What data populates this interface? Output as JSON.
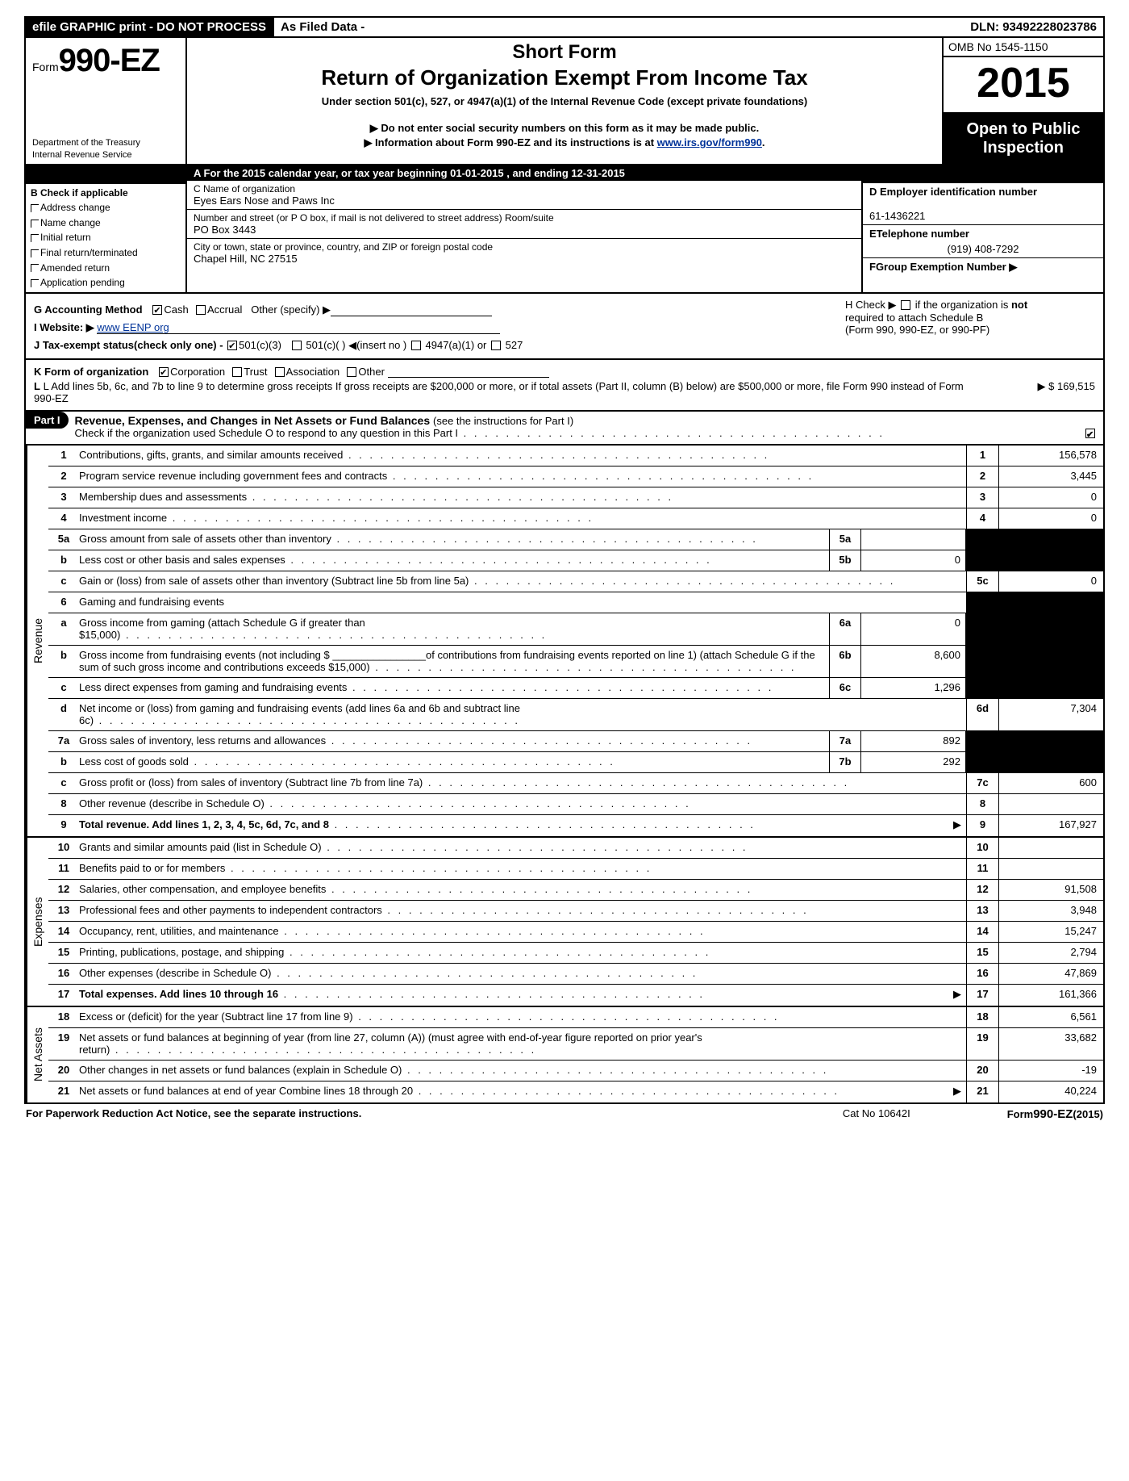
{
  "topbar": {
    "efile": "efile GRAPHIC print - DO NOT PROCESS",
    "asfiled": "As Filed Data -",
    "dln_label": "DLN:",
    "dln": "93492228023786"
  },
  "header": {
    "form_prefix": "Form",
    "form_no": "990-EZ",
    "dept1": "Department of the Treasury",
    "dept2": "Internal Revenue Service",
    "short_form": "Short Form",
    "title": "Return of Organization Exempt From Income Tax",
    "under": "Under section 501(c), 527, or 4947(a)(1) of the Internal Revenue Code (except private foundations)",
    "donot": "▶ Do not enter social security numbers on this form as it may be made public.",
    "info_pre": "▶ Information about Form 990-EZ and its instructions is at ",
    "info_link": "www.irs.gov/form990",
    "info_post": ".",
    "omb": "OMB No  1545-1150",
    "year": "2015",
    "open1": "Open to Public",
    "open2": "Inspection"
  },
  "section_a": {
    "row_a": "A  For the 2015 calendar year, or tax year beginning 01-01-2015             , and ending 12-31-2015",
    "b_title": "B  Check if applicable",
    "b_items": [
      "Address change",
      "Name change",
      "Initial return",
      "Final return/terminated",
      "Amended return",
      "Application pending"
    ],
    "c_name_lbl": "C Name of organization",
    "c_name": "Eyes Ears Nose and Paws Inc",
    "c_street_lbl": "Number and street (or P  O  box, if mail is not delivered to street address) Room/suite",
    "c_street": "PO Box 3443",
    "c_city_lbl": "City or town, state or province, country, and ZIP or foreign postal code",
    "c_city": "Chapel Hill, NC  27515",
    "d_lbl": "D Employer identification number",
    "d_val": "61-1436221",
    "e_lbl": "ETelephone number",
    "e_val": "(919) 408-7292",
    "f_lbl": "FGroup Exemption Number    ▶"
  },
  "meta": {
    "g": "G Accounting Method",
    "g_cash": "Cash",
    "g_accrual": "Accrual",
    "g_other": "Other (specify) ▶",
    "h1": "H  Check ▶",
    "h2": "if the organization is",
    "h_not": "not",
    "h3": "required to attach Schedule B",
    "h4": "(Form 990, 990-EZ, or 990-PF)",
    "i_lbl": "I Website: ▶",
    "i_url": "www EENP org",
    "j": "J Tax-exempt status(check only one) -",
    "j_1": "501(c)(3)",
    "j_2": "501(c)(  )",
    "j_insert": "(insert no )",
    "j_3": "4947(a)(1) or",
    "j_4": "527",
    "k": "K Form of organization",
    "k_corp": "Corporation",
    "k_trust": "Trust",
    "k_assoc": "Association",
    "k_other": "Other",
    "l": "L Add lines 5b, 6c, and 7b to line 9 to determine gross receipts  If gross receipts are $200,000 or more, or if total assets (Part II, column (B) below) are $500,000 or more, file Form 990 instead of Form 990-EZ",
    "l_val": "▶ $ 169,515"
  },
  "part1": {
    "label": "Part I",
    "title": "Revenue, Expenses, and Changes in Net Assets or Fund Balances",
    "title_sub": "(see the instructions for Part I)",
    "check_line": "Check if the organization used Schedule O to respond to any question in this Part I"
  },
  "sections": {
    "revenue_label": "Revenue",
    "expenses_label": "Expenses",
    "netassets_label": "Net Assets"
  },
  "revenue": [
    {
      "n": "1",
      "d": "Contributions, gifts, grants, and similar amounts received",
      "rn": "1",
      "rv": "156,578"
    },
    {
      "n": "2",
      "d": "Program service revenue including government fees and contracts",
      "rn": "2",
      "rv": "3,445"
    },
    {
      "n": "3",
      "d": "Membership dues and assessments",
      "rn": "3",
      "rv": "0"
    },
    {
      "n": "4",
      "d": "Investment income",
      "rn": "4",
      "rv": "0"
    },
    {
      "n": "5a",
      "d": "Gross amount from sale of assets other than inventory",
      "sn": "5a",
      "sv": ""
    },
    {
      "n": "b",
      "d": "Less  cost or other basis and sales expenses",
      "sn": "5b",
      "sv": "0"
    },
    {
      "n": "c",
      "d": "Gain or (loss) from sale of assets other than inventory (Subtract line 5b from line 5a)",
      "rn": "5c",
      "rv": "0"
    },
    {
      "n": "6",
      "d": "Gaming and fundraising events"
    },
    {
      "n": "a",
      "d": "Gross income from gaming (attach Schedule G if greater than $15,000)",
      "sn": "6a",
      "sv": "0"
    },
    {
      "n": "b",
      "d": "Gross income from fundraising events (not including $ ________________of contributions from fundraising events reported on line 1) (attach Schedule G if the sum of such gross income and contributions exceeds $15,000)",
      "sn": "6b",
      "sv": "8,600"
    },
    {
      "n": "c",
      "d": "Less  direct expenses from gaming and fundraising events",
      "sn": "6c",
      "sv": "1,296"
    },
    {
      "n": "d",
      "d": "Net income or (loss) from gaming and fundraising events (add lines 6a and 6b and subtract line 6c)",
      "rn": "6d",
      "rv": "7,304"
    },
    {
      "n": "7a",
      "d": "Gross sales of inventory, less returns and allowances",
      "sn": "7a",
      "sv": "892"
    },
    {
      "n": "b",
      "d": "Less  cost of goods sold",
      "sn": "7b",
      "sv": "292"
    },
    {
      "n": "c",
      "d": "Gross profit or (loss) from sales of inventory (Subtract line 7b from line 7a)",
      "rn": "7c",
      "rv": "600"
    },
    {
      "n": "8",
      "d": "Other revenue (describe in Schedule O)",
      "rn": "8",
      "rv": ""
    },
    {
      "n": "9",
      "d": "Total revenue. Add lines 1, 2, 3, 4, 5c, 6d, 7c, and 8",
      "rn": "9",
      "rv": "167,927",
      "bold": true,
      "arrow": true
    }
  ],
  "expenses": [
    {
      "n": "10",
      "d": "Grants and similar amounts paid (list in Schedule O)",
      "rn": "10",
      "rv": ""
    },
    {
      "n": "11",
      "d": "Benefits paid to or for members",
      "rn": "11",
      "rv": ""
    },
    {
      "n": "12",
      "d": "Salaries, other compensation, and employee benefits",
      "rn": "12",
      "rv": "91,508"
    },
    {
      "n": "13",
      "d": "Professional fees and other payments to independent contractors",
      "rn": "13",
      "rv": "3,948"
    },
    {
      "n": "14",
      "d": "Occupancy, rent, utilities, and maintenance",
      "rn": "14",
      "rv": "15,247"
    },
    {
      "n": "15",
      "d": "Printing, publications, postage, and shipping",
      "rn": "15",
      "rv": "2,794"
    },
    {
      "n": "16",
      "d": "Other expenses (describe in Schedule O)",
      "rn": "16",
      "rv": "47,869"
    },
    {
      "n": "17",
      "d": "Total expenses. Add lines 10 through 16",
      "rn": "17",
      "rv": "161,366",
      "bold": true,
      "arrow": true
    }
  ],
  "netassets": [
    {
      "n": "18",
      "d": "Excess or (deficit) for the year (Subtract line 17 from line 9)",
      "rn": "18",
      "rv": "6,561"
    },
    {
      "n": "19",
      "d": "Net assets or fund balances at beginning of year (from line 27, column (A)) (must agree with end-of-year figure reported on prior year's return)",
      "rn": "19",
      "rv": "33,682"
    },
    {
      "n": "20",
      "d": "Other changes in net assets or fund balances (explain in Schedule O)",
      "rn": "20",
      "rv": "-19"
    },
    {
      "n": "21",
      "d": "Net assets or fund balances at end of year  Combine lines 18 through 20",
      "rn": "21",
      "rv": "40,224",
      "arrow": true
    }
  ],
  "footer": {
    "left": "For Paperwork Reduction Act Notice, see the separate instructions.",
    "mid": "Cat No  10642I",
    "right_pre": "Form",
    "right_form": "990-EZ",
    "right_year": "(2015)"
  }
}
